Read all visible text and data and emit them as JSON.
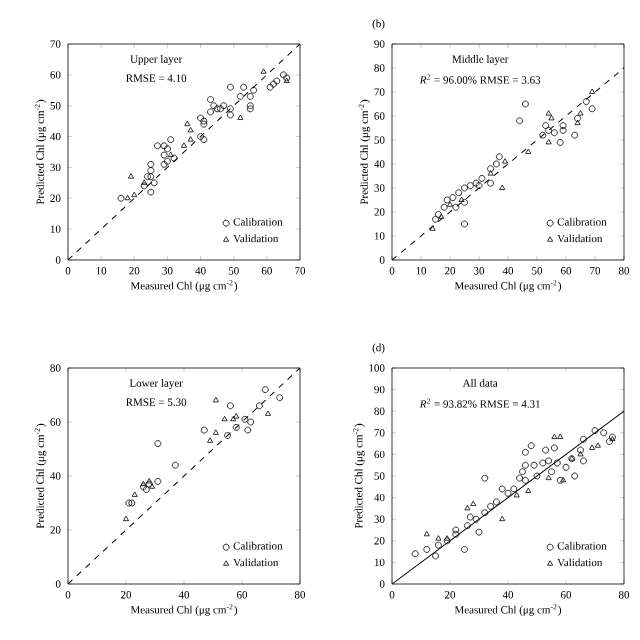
{
  "chart_data": [
    {
      "type": "scatter",
      "xlabel": "Measured Chl (μg cm$^{-2}$)",
      "ylabel": "Predicted Chl (μg cm$^{-2}$)",
      "annotations": [
        "Upper layer",
        "RMSE = 4.10"
      ],
      "xlim": [
        0,
        70
      ],
      "ylim": [
        0,
        70
      ],
      "xticks": [
        0,
        10,
        20,
        30,
        40,
        50,
        60,
        70
      ],
      "yticks": [
        0,
        10,
        20,
        30,
        40,
        50,
        60,
        70
      ],
      "legend": "bottom right",
      "series": [
        {
          "name": "Calibration",
          "color": "#000000",
          "marker": "circle",
          "x": [
            49,
            53,
            56,
            55,
            52,
            43,
            44,
            45,
            43,
            46,
            47,
            49,
            49,
            55,
            55,
            61,
            62,
            63,
            65,
            66,
            40,
            41,
            41,
            40,
            41,
            31,
            29,
            30,
            29,
            32,
            30,
            29,
            27,
            25,
            25,
            24,
            25,
            26,
            23,
            25,
            16
          ],
          "values": [
            56,
            56,
            55,
            53,
            53,
            52,
            50,
            49,
            48,
            49,
            50,
            47,
            49,
            50,
            49,
            56,
            57,
            58,
            60,
            59,
            46,
            45,
            44,
            40,
            39,
            39,
            37,
            36,
            34,
            33,
            32,
            31,
            37,
            31,
            29,
            27,
            27,
            25,
            24,
            22,
            20
          ]
        },
        {
          "name": "Validation",
          "color": "#000000",
          "marker": "triangle",
          "x": [
            59,
            66,
            52,
            36,
            37,
            37,
            35,
            31,
            19,
            18,
            20,
            23
          ],
          "values": [
            61,
            58,
            46,
            44,
            42,
            39,
            37,
            34,
            27,
            20,
            21,
            25
          ]
        },
        {
          "type": "line",
          "color": "#000000",
          "line_style": "dashed",
          "marker": "none",
          "x": [
            0,
            70
          ],
          "values": [
            0,
            70
          ]
        }
      ]
    },
    {
      "type": "scatter",
      "title": "(b)",
      "xlabel": "Measured Chl (μg cm$^{-2}$)",
      "ylabel": "Predicted Chl (μg cm$^{-2}$)",
      "annotations": [
        "Middle layer",
        "*R*$^{2}$ = 96.00% RMSE = 3.63"
      ],
      "xlim": [
        0,
        80
      ],
      "ylim": [
        0,
        90
      ],
      "xticks": [
        0,
        10,
        20,
        30,
        40,
        50,
        60,
        70,
        80
      ],
      "yticks": [
        0,
        10,
        20,
        30,
        40,
        50,
        60,
        70,
        80,
        90
      ],
      "legend": "bottom right",
      "series": [
        {
          "name": "Calibration",
          "color": "#000000",
          "marker": "circle",
          "x": [
            46,
            44,
            25,
            37,
            36,
            34,
            31,
            29,
            27,
            25,
            23,
            21,
            19,
            18,
            16,
            15,
            22,
            25,
            64,
            67,
            69,
            63,
            59,
            58,
            56,
            53,
            52,
            54,
            59,
            34,
            30
          ],
          "values": [
            65,
            58,
            15,
            43,
            40,
            38,
            34,
            32,
            31,
            30,
            28,
            26,
            25,
            22,
            19,
            17,
            22,
            24,
            59,
            66,
            63,
            52,
            54,
            49,
            53,
            56,
            52,
            54,
            56,
            32,
            31
          ]
        },
        {
          "name": "Validation",
          "color": "#000000",
          "marker": "triangle",
          "x": [
            54,
            55,
            54,
            64,
            65,
            47,
            38,
            14,
            17,
            20,
            24,
            34,
            39,
            69
          ],
          "values": [
            61,
            59,
            49,
            57,
            61,
            45,
            30,
            13,
            18,
            23,
            25,
            36,
            41,
            70
          ]
        },
        {
          "type": "line",
          "color": "#000000",
          "line_style": "dashed",
          "marker": "none",
          "x": [
            0,
            80
          ],
          "values": [
            0,
            80
          ]
        }
      ]
    },
    {
      "type": "scatter",
      "xlabel": "Measured Chl (μg cm$^{-2}$)",
      "ylabel": "Predicted Chl (μg cm$^{-2}$)",
      "annotations": [
        "Lower layer",
        "RMSE = 5.30"
      ],
      "xlim": [
        0,
        80
      ],
      "ylim": [
        0,
        80
      ],
      "xticks": [
        0,
        20,
        40,
        60,
        80
      ],
      "yticks": [
        0,
        20,
        40,
        60,
        80
      ],
      "legend": "bottom right",
      "series": [
        {
          "name": "Calibration",
          "color": "#000000",
          "marker": "circle",
          "x": [
            68,
            73,
            66,
            56,
            61,
            58,
            63,
            62,
            55,
            47,
            31,
            37,
            31,
            28,
            26,
            27,
            22,
            21
          ],
          "values": [
            72,
            69,
            66,
            66,
            61,
            58,
            60,
            57,
            55,
            57,
            52,
            44,
            38,
            37,
            36,
            35,
            30,
            30
          ]
        },
        {
          "name": "Validation",
          "color": "#000000",
          "marker": "triangle",
          "x": [
            51,
            54,
            57,
            58,
            69,
            51,
            49,
            28,
            26,
            29,
            23,
            20
          ],
          "values": [
            68,
            61,
            61,
            62,
            63,
            56,
            53,
            38,
            37,
            36,
            33,
            24
          ]
        },
        {
          "type": "line",
          "color": "#000000",
          "line_style": "dashed",
          "marker": "none",
          "x": [
            0,
            80
          ],
          "values": [
            0,
            80
          ]
        }
      ]
    },
    {
      "type": "scatter",
      "title": "(d)",
      "xlabel": "Measured Chl (μg cm$^{-2}$)",
      "ylabel": "Predicted Chl (μg cm$^{-2}$)",
      "annotations": [
        "All data",
        "*R*$^{2}$ = 93.82% RMSE = 4.31"
      ],
      "xlim": [
        0,
        80
      ],
      "ylim": [
        0,
        100
      ],
      "xticks": [
        0,
        20,
        40,
        60,
        80
      ],
      "yticks": [
        0,
        10,
        20,
        30,
        40,
        50,
        60,
        70,
        80,
        90,
        100
      ],
      "legend": "bottom right",
      "series": [
        {
          "name": "Calibration",
          "color": "#000000",
          "marker": "circle",
          "x": [
            8,
            12,
            15,
            16,
            19,
            22,
            22,
            25,
            26,
            27,
            29,
            30,
            32,
            32,
            34,
            36,
            38,
            40,
            42,
            44,
            46,
            46,
            48,
            49,
            50,
            52,
            53,
            54,
            55,
            56,
            57,
            58,
            60,
            62,
            63,
            65,
            66,
            66,
            70,
            73,
            76,
            75,
            45,
            46
          ],
          "values": [
            14,
            16,
            13,
            18,
            20,
            23,
            25,
            16,
            27,
            31,
            30,
            24,
            49,
            33,
            36,
            38,
            44,
            42,
            44,
            49,
            48,
            61,
            64,
            55,
            50,
            56,
            62,
            57,
            52,
            63,
            56,
            48,
            54,
            58,
            50,
            62,
            67,
            57,
            71,
            70,
            68,
            66,
            52,
            55
          ]
        },
        {
          "name": "Validation",
          "color": "#000000",
          "marker": "triangle",
          "x": [
            12,
            16,
            19,
            26,
            28,
            38,
            43,
            47,
            54,
            56,
            58,
            59,
            62,
            69,
            71,
            76,
            65
          ],
          "values": [
            23,
            21,
            21,
            35,
            37,
            30,
            41,
            43,
            49,
            68,
            68,
            48,
            58,
            63,
            64,
            67,
            60
          ]
        },
        {
          "type": "line",
          "color": "#000000",
          "line_style": "solid",
          "marker": "none",
          "x": [
            0,
            80
          ],
          "values": [
            0,
            80
          ]
        }
      ]
    }
  ]
}
